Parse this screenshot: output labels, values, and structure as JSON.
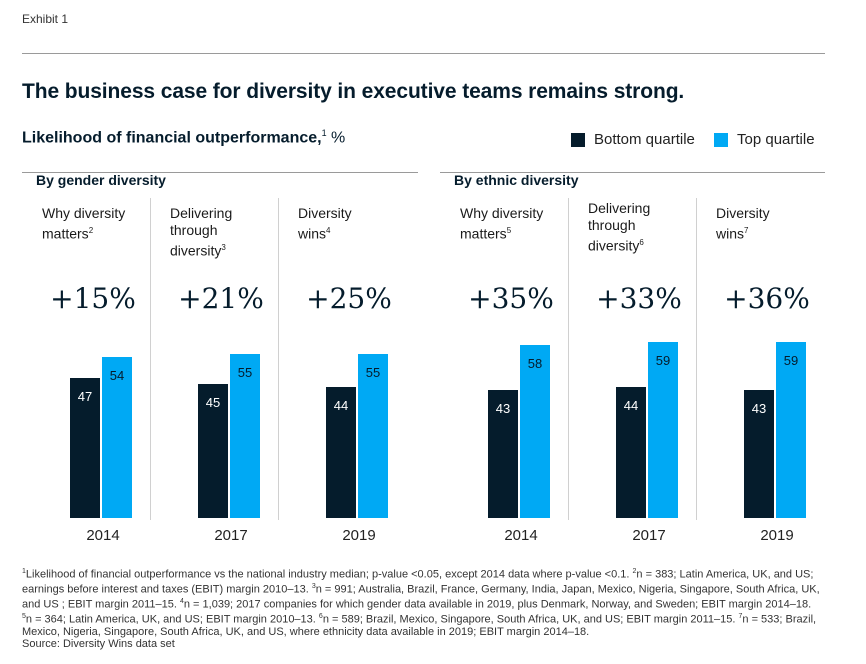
{
  "exhibit_label": "Exhibit 1",
  "title": "The business case for diversity in executive teams remains strong.",
  "subtitle": {
    "text": "Likelihood of financial outperformance,",
    "sup": "1",
    "unit": " %"
  },
  "legend": {
    "bottom": "Bottom quartile",
    "top": "Top quartile"
  },
  "colors": {
    "bottom": "#051c2c",
    "top": "#00a9f4",
    "text_dark": "#ffffff",
    "text_light": "#051c2c"
  },
  "chart_data": {
    "type": "bar",
    "unit": "%",
    "series": [
      {
        "name": "Bottom quartile"
      },
      {
        "name": "Top quartile"
      }
    ],
    "groups": [
      {
        "title": "By gender diversity",
        "panels": [
          {
            "label": "Why diversity matters",
            "sup": "2",
            "uplift": "+15%",
            "year": "2014",
            "bottom": 47,
            "top": 54
          },
          {
            "label": "Delivering through diversity",
            "sup": "3",
            "uplift": "+21%",
            "year": "2017",
            "bottom": 45,
            "top": 55
          },
          {
            "label": "Diversity wins",
            "sup": "4",
            "uplift": "+25%",
            "year": "2019",
            "bottom": 44,
            "top": 55
          }
        ]
      },
      {
        "title": "By ethnic diversity",
        "panels": [
          {
            "label": "Why diversity matters",
            "sup": "5",
            "uplift": "+35%",
            "year": "2014",
            "bottom": 43,
            "top": 58
          },
          {
            "label": "Delivering through diversity",
            "sup": "6",
            "uplift": "+33%",
            "year": "2017",
            "bottom": 44,
            "top": 59
          },
          {
            "label": "Diversity wins",
            "sup": "7",
            "uplift": "+36%",
            "year": "2019",
            "bottom": 43,
            "top": 59
          }
        ]
      }
    ]
  },
  "footnote": {
    "sup1": "1",
    "t1": "Likelihood of financial outperformance vs the national industry median; p-value <0.05, except 2014 data where p-value <0.1. ",
    "sup2": "2",
    "t2": "n = 383; Latin America, UK, and US; earnings before interest and taxes (EBIT) margin 2010–13. ",
    "sup3": "3",
    "t3": "n = 991; Australia, Brazil, France, Germany, India, Japan, Mexico, Nigeria, Singapore, South Africa, UK, and US ; EBIT margin 2011–15. ",
    "sup4": "4",
    "t4": "n = 1,039; 2017 companies for which gender data available in 2019, plus Denmark, Norway, and Sweden;  EBIT margin 2014–18. ",
    "sup5": "5",
    "t5": "n = 364; Latin America, UK, and US; EBIT margin 2010–13. ",
    "sup6": "6",
    "t6": "n = 589; Brazil, Mexico, Singapore, South Africa, UK, and US; EBIT margin 2011–15. ",
    "sup7": "7",
    "t7": "n = 533; Brazil, Mexico, Nigeria, Singapore, South Africa, UK, and US, where ethnicity data available in 2019; EBIT margin 2014–18.",
    "source": "Source: Diversity Wins data set"
  }
}
